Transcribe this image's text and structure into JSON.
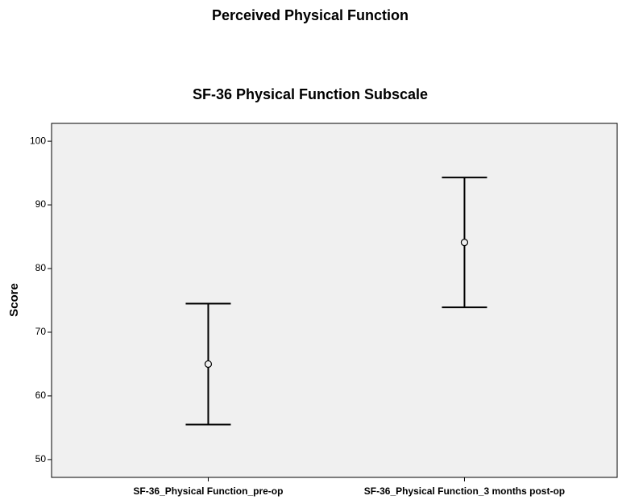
{
  "chart_data": {
    "type": "errorbar",
    "suptitle": "Perceived Physical Function",
    "title": "SF-36 Physical Function Subscale",
    "ylabel": "Score",
    "categories": [
      "SF-36_Physical Function_pre-op",
      "SF-36_Physical Function_3 months post-op"
    ],
    "values": [
      65,
      84.1
    ],
    "errors": [
      9.5,
      10.2
    ],
    "color": "#000000",
    "ylim": [
      47.2,
      102.8
    ],
    "yticks": [
      50,
      60,
      70,
      80,
      90,
      100
    ],
    "grid": false
  }
}
